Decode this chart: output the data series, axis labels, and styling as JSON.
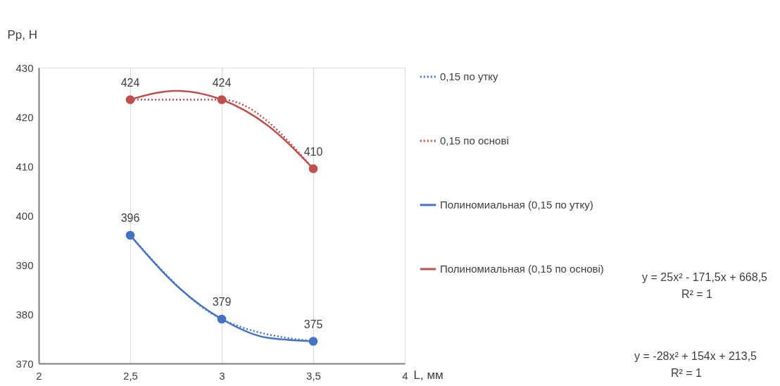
{
  "chart_data": {
    "type": "line",
    "xlabel": "L, мм",
    "ylabel": "Pp, H",
    "x": [
      2.5,
      3,
      3.5
    ],
    "xlim": [
      2,
      4
    ],
    "xticks": [
      2,
      {
        "value": 2.5,
        "label": "2,5"
      },
      3,
      {
        "value": 3.5,
        "label": "3,5"
      },
      4
    ],
    "ylim": [
      370,
      430
    ],
    "yticks": [
      370,
      380,
      390,
      400,
      410,
      420,
      430
    ],
    "grid": "x",
    "legend": "right",
    "series": [
      {
        "name": "0,15 по утку",
        "color": "#4472c4",
        "values": [
          396,
          379,
          374.5
        ],
        "value_labels": [
          "396",
          "379",
          "375"
        ],
        "line_style": "dotted",
        "marker": "circle"
      },
      {
        "name": "0,15 по основі",
        "color": "#c0504d",
        "values": [
          423.5,
          423.5,
          409.5
        ],
        "value_labels": [
          "424",
          "424",
          "410"
        ],
        "line_style": "dotted",
        "marker": "circle"
      },
      {
        "name": "Полиномиальная (0,15 по утку)",
        "color": "#4472c4",
        "x": [
          2.5,
          2.75,
          3,
          3.25,
          3.5
        ],
        "values": [
          396,
          385.9,
          379,
          375.2,
          374.5
        ],
        "line_style": "solid",
        "marker": "none"
      },
      {
        "name": "Полиномиальная (0,15 по основі)",
        "color": "#c0504d",
        "x": [
          2.5,
          2.75,
          3,
          3.25,
          3.5
        ],
        "values": [
          423.5,
          425.3,
          423.5,
          418.3,
          409.5
        ],
        "line_style": "solid",
        "marker": "none"
      }
    ],
    "annotations": [
      "y = 25x² - 171,5x + 668,5",
      "R² = 1",
      "y = -28x² + 154x + 213,5",
      "R² = 1"
    ]
  }
}
